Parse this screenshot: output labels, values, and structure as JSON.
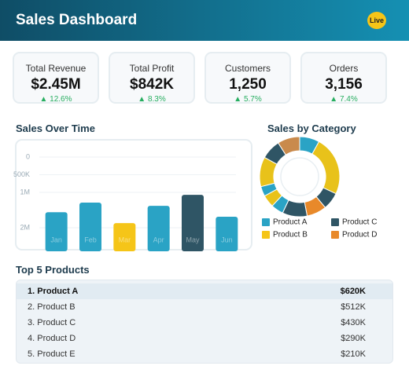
{
  "header": {
    "title": "Sales Dashboard",
    "badge": "Live"
  },
  "kpis": [
    {
      "label": "Total Revenue",
      "value": "$2.45M",
      "change": "12.6%"
    },
    {
      "label": "Total Profit",
      "value": "$842K",
      "change": "8.3%"
    },
    {
      "label": "Customers",
      "value": "1,250",
      "change": "5.7%"
    },
    {
      "label": "Orders",
      "value": "3,156",
      "change": "7.4%"
    }
  ],
  "chart_data": [
    {
      "type": "bar",
      "title": "Sales Over Time",
      "categories": [
        "Jan",
        "Feb",
        "Mar",
        "Apr",
        "May",
        "Jun"
      ],
      "values": [
        1560000,
        1290000,
        1870000,
        1380000,
        1070000,
        1690000
      ],
      "colors": [
        "#2aa3c5",
        "#2aa3c5",
        "#f5c518",
        "#2aa3c5",
        "#2f5565",
        "#2aa3c5"
      ],
      "ylim": [
        0,
        2000000
      ],
      "y_reversed": true,
      "grid": true,
      "yticks": [
        0,
        {
          "value": 500000,
          "label": "500K"
        },
        {
          "value": 1000000,
          "label": "1M"
        },
        {
          "value": 2000000,
          "label": "2M"
        }
      ]
    },
    {
      "type": "pie",
      "title": "Sales by Category",
      "donut": true,
      "values": [
        8,
        24,
        7,
        8,
        10,
        5,
        5,
        4,
        12,
        8,
        9
      ],
      "colors": [
        "#2aa3c5",
        "#e8c21a",
        "#2f5565",
        "#e8892a",
        "#2f5565",
        "#2aa3c5",
        "#e8c21a",
        "#2aa3c5",
        "#e8c21a",
        "#2f5565",
        "#c98a4c"
      ],
      "legend": [
        {
          "name": "Product A",
          "color": "#2aa3c5"
        },
        {
          "name": "Product C",
          "color": "#2f5565"
        },
        {
          "name": "Product B",
          "color": "#f5c518"
        },
        {
          "name": "Product D",
          "color": "#e8892a"
        }
      ]
    }
  ],
  "top_products": {
    "title": "Top 5 Products",
    "rows": [
      [
        "1. Product A",
        "$620K"
      ],
      [
        "2. Product B",
        "$512K"
      ],
      [
        "3. Product C",
        "$430K"
      ],
      [
        "4. Product D",
        "$290K"
      ],
      [
        "5. Product E",
        "$210K"
      ]
    ]
  }
}
